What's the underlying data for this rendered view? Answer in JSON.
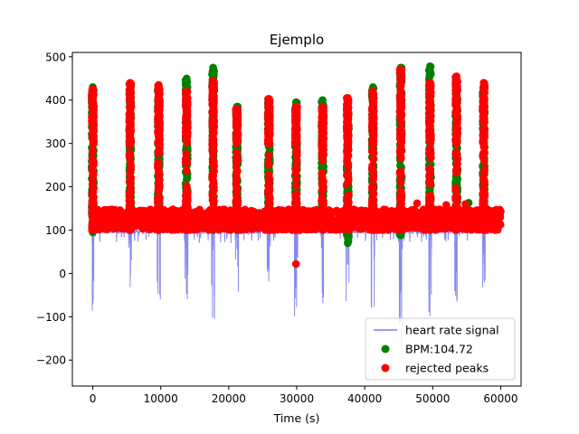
{
  "chart_data": {
    "type": "scatter",
    "title": "Ejemplo",
    "xlabel": "Time (s)",
    "ylabel": "",
    "xlim": [
      -3000,
      63000
    ],
    "ylim": [
      -260,
      510
    ],
    "x_ticks": [
      0,
      10000,
      20000,
      30000,
      40000,
      50000,
      60000
    ],
    "y_ticks": [
      -200,
      -100,
      0,
      100,
      200,
      300,
      400,
      500
    ],
    "grid": false,
    "legend_position": "lower-right",
    "colors": {
      "signal": "#7b7bf0",
      "accepted": "#008000",
      "rejected": "#ff0000"
    },
    "legend": [
      {
        "label": "heart rate signal",
        "kind": "line",
        "color": "#7b7bf0"
      },
      {
        "label": "BPM:104.72",
        "kind": "dot",
        "color": "#008000"
      },
      {
        "label": "rejected peaks",
        "kind": "dot",
        "color": "#ff0000"
      }
    ],
    "signal": {
      "baseline_range": [
        92,
        102
      ],
      "burst_times": [
        0,
        5500,
        9700,
        13800,
        17700,
        21200,
        25900,
        29900,
        33800,
        37500,
        41200,
        45300,
        49600,
        53500,
        57500
      ],
      "burst_dip_min": [
        -105,
        -45,
        -115,
        -80,
        -120,
        -50,
        -70,
        -115,
        -85,
        -75,
        -110,
        -210,
        -100,
        -90,
        -45
      ]
    },
    "series": [
      {
        "name": "BPM:104.72",
        "clusters": [
          {
            "x": 0,
            "y_range": [
              95,
              430
            ]
          },
          {
            "x": 5500,
            "y_range": [
              100,
              420
            ]
          },
          {
            "x": 9700,
            "y_range": [
              100,
              430
            ]
          },
          {
            "x": 13800,
            "y_range": [
              100,
              450
            ]
          },
          {
            "x": 17700,
            "y_range": [
              100,
              475
            ]
          },
          {
            "x": 21200,
            "y_range": [
              100,
              385
            ]
          },
          {
            "x": 25900,
            "y_range": [
              100,
              400
            ]
          },
          {
            "x": 29900,
            "y_range": [
              100,
              395
            ]
          },
          {
            "x": 33800,
            "y_range": [
              100,
              400
            ]
          },
          {
            "x": 37500,
            "y_range": [
              70,
              395
            ]
          },
          {
            "x": 41200,
            "y_range": [
              100,
              430
            ]
          },
          {
            "x": 45300,
            "y_range": [
              88,
              475
            ]
          },
          {
            "x": 49600,
            "y_range": [
              100,
              478
            ]
          },
          {
            "x": 53500,
            "y_range": [
              100,
              415
            ]
          },
          {
            "x": 57500,
            "y_range": [
              100,
              425
            ]
          }
        ],
        "points": [
          [
            7800,
            142
          ],
          [
            55300,
            163
          ],
          [
            42500,
            110
          ]
        ]
      },
      {
        "name": "rejected peaks",
        "band": {
          "x_range": [
            0,
            60000
          ],
          "y_range": [
            100,
            148
          ]
        },
        "clusters": [
          {
            "x": 0,
            "y_range": [
              100,
              425
            ]
          },
          {
            "x": 5500,
            "y_range": [
              100,
              440
            ]
          },
          {
            "x": 9700,
            "y_range": [
              100,
              435
            ]
          },
          {
            "x": 13800,
            "y_range": [
              100,
              420
            ]
          },
          {
            "x": 17700,
            "y_range": [
              100,
              445
            ]
          },
          {
            "x": 21200,
            "y_range": [
              100,
              380
            ]
          },
          {
            "x": 25900,
            "y_range": [
              100,
              403
            ]
          },
          {
            "x": 29900,
            "y_range": [
              100,
              385
            ]
          },
          {
            "x": 33800,
            "y_range": [
              100,
              385
            ]
          },
          {
            "x": 37500,
            "y_range": [
              100,
              405
            ]
          },
          {
            "x": 41200,
            "y_range": [
              100,
              420
            ]
          },
          {
            "x": 45300,
            "y_range": [
              100,
              470
            ]
          },
          {
            "x": 49600,
            "y_range": [
              100,
              440
            ]
          },
          {
            "x": 53500,
            "y_range": [
              100,
              455
            ]
          },
          {
            "x": 57500,
            "y_range": [
              100,
              440
            ]
          }
        ],
        "points": [
          [
            29900,
            22
          ],
          [
            47700,
            162
          ],
          [
            52000,
            158
          ],
          [
            54800,
            160
          ]
        ]
      }
    ]
  }
}
